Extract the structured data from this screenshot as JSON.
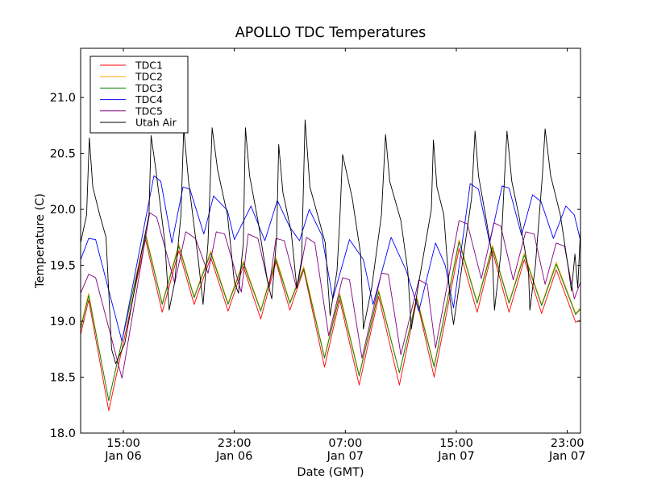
{
  "chart_data": {
    "type": "line",
    "title": "APOLLO TDC Temperatures",
    "xlabel": "Date (GMT)",
    "ylabel": "Temperature (C)",
    "x_units": "hours since 00:00 Jan 06 (GMT)",
    "xlim": [
      11.92,
      47.95
    ],
    "ylim": [
      18.0,
      21.44
    ],
    "grid": false,
    "legend_position": "top-left",
    "x_ticks": [
      {
        "value": 15,
        "label_time": "15:00",
        "label_date": "Jan 06"
      },
      {
        "value": 23,
        "label_time": "23:00",
        "label_date": "Jan 06"
      },
      {
        "value": 31,
        "label_time": "07:00",
        "label_date": "Jan 07"
      },
      {
        "value": 39,
        "label_time": "15:00",
        "label_date": "Jan 07"
      },
      {
        "value": 47,
        "label_time": "23:00",
        "label_date": "Jan 07"
      }
    ],
    "y_ticks": [
      {
        "value": 18.0,
        "label": "18.0"
      },
      {
        "value": 18.5,
        "label": "18.5"
      },
      {
        "value": 19.0,
        "label": "19.0"
      },
      {
        "value": 19.5,
        "label": "19.5"
      },
      {
        "value": 20.0,
        "label": "20.0"
      },
      {
        "value": 20.5,
        "label": "20.5"
      },
      {
        "value": 21.0,
        "label": "21.0"
      }
    ],
    "series": [
      {
        "name": "TDC1",
        "color": "#ff0000",
        "points": [
          [
            11.92,
            18.88
          ],
          [
            12.5,
            19.19
          ],
          [
            13.95,
            18.2
          ],
          [
            16.6,
            19.73
          ],
          [
            17.8,
            19.08
          ],
          [
            19.0,
            19.63
          ],
          [
            20.1,
            19.15
          ],
          [
            21.3,
            19.57
          ],
          [
            22.55,
            19.09
          ],
          [
            23.65,
            19.49
          ],
          [
            24.9,
            19.02
          ],
          [
            26.0,
            19.53
          ],
          [
            27.0,
            19.1
          ],
          [
            28.0,
            19.46
          ],
          [
            29.5,
            18.59
          ],
          [
            30.6,
            19.19
          ],
          [
            32.0,
            18.43
          ],
          [
            33.4,
            19.22
          ],
          [
            34.9,
            18.43
          ],
          [
            36.15,
            19.19
          ],
          [
            37.4,
            18.5
          ],
          [
            39.2,
            19.65
          ],
          [
            40.5,
            19.08
          ],
          [
            41.6,
            19.63
          ],
          [
            42.8,
            19.08
          ],
          [
            43.9,
            19.55
          ],
          [
            45.15,
            19.07
          ],
          [
            46.2,
            19.46
          ],
          [
            47.6,
            18.99
          ],
          [
            47.95,
            19.01
          ]
        ]
      },
      {
        "name": "TDC2",
        "color": "#ffa500",
        "points": [
          [
            11.92,
            18.95
          ],
          [
            12.5,
            19.25
          ],
          [
            13.95,
            18.29
          ],
          [
            16.6,
            19.79
          ],
          [
            17.8,
            19.16
          ],
          [
            19.0,
            19.69
          ],
          [
            20.1,
            19.22
          ],
          [
            21.3,
            19.63
          ],
          [
            22.55,
            19.16
          ],
          [
            23.65,
            19.54
          ],
          [
            24.9,
            19.1
          ],
          [
            26.0,
            19.57
          ],
          [
            27.0,
            19.17
          ],
          [
            28.0,
            19.49
          ],
          [
            29.5,
            18.68
          ],
          [
            30.6,
            19.25
          ],
          [
            32.0,
            18.52
          ],
          [
            33.4,
            19.28
          ],
          [
            34.9,
            18.54
          ],
          [
            36.15,
            19.22
          ],
          [
            37.4,
            18.6
          ],
          [
            39.2,
            19.73
          ],
          [
            40.5,
            19.17
          ],
          [
            41.6,
            19.68
          ],
          [
            42.8,
            19.17
          ],
          [
            43.9,
            19.61
          ],
          [
            45.15,
            19.15
          ],
          [
            46.2,
            19.53
          ],
          [
            47.6,
            19.07
          ],
          [
            47.95,
            19.12
          ]
        ]
      },
      {
        "name": "TDC3",
        "color": "#008000",
        "points": [
          [
            11.92,
            18.93
          ],
          [
            12.5,
            19.23
          ],
          [
            13.95,
            18.29
          ],
          [
            16.6,
            19.77
          ],
          [
            17.8,
            19.15
          ],
          [
            19.0,
            19.67
          ],
          [
            20.1,
            19.21
          ],
          [
            21.3,
            19.61
          ],
          [
            22.55,
            19.15
          ],
          [
            23.65,
            19.52
          ],
          [
            24.9,
            19.09
          ],
          [
            26.0,
            19.55
          ],
          [
            27.0,
            19.16
          ],
          [
            28.0,
            19.47
          ],
          [
            29.5,
            18.67
          ],
          [
            30.6,
            19.23
          ],
          [
            32.0,
            18.51
          ],
          [
            33.4,
            19.26
          ],
          [
            34.9,
            18.54
          ],
          [
            36.15,
            19.2
          ],
          [
            37.4,
            18.59
          ],
          [
            39.2,
            19.71
          ],
          [
            40.5,
            19.16
          ],
          [
            41.6,
            19.66
          ],
          [
            42.8,
            19.16
          ],
          [
            43.9,
            19.59
          ],
          [
            45.15,
            19.14
          ],
          [
            46.2,
            19.51
          ],
          [
            47.6,
            19.06
          ],
          [
            47.95,
            19.11
          ]
        ]
      },
      {
        "name": "TDC4",
        "color": "#0000ff",
        "points": [
          [
            11.92,
            19.55
          ],
          [
            12.5,
            19.74
          ],
          [
            13.0,
            19.73
          ],
          [
            14.9,
            18.82
          ],
          [
            17.2,
            20.3
          ],
          [
            17.7,
            20.25
          ],
          [
            18.5,
            19.7
          ],
          [
            19.3,
            20.2
          ],
          [
            19.8,
            20.18
          ],
          [
            20.8,
            19.78
          ],
          [
            21.5,
            20.12
          ],
          [
            22.5,
            19.99
          ],
          [
            23.0,
            19.73
          ],
          [
            24.2,
            20.03
          ],
          [
            25.2,
            19.72
          ],
          [
            26.1,
            20.08
          ],
          [
            27.0,
            19.84
          ],
          [
            27.7,
            19.72
          ],
          [
            28.4,
            20.0
          ],
          [
            29.3,
            19.77
          ],
          [
            30.1,
            19.2
          ],
          [
            31.3,
            19.73
          ],
          [
            32.3,
            19.55
          ],
          [
            33.0,
            19.15
          ],
          [
            34.3,
            19.75
          ],
          [
            35.4,
            19.45
          ],
          [
            36.3,
            19.09
          ],
          [
            37.5,
            19.7
          ],
          [
            38.2,
            19.5
          ],
          [
            38.8,
            19.12
          ],
          [
            40.0,
            20.23
          ],
          [
            40.6,
            20.18
          ],
          [
            41.4,
            19.7
          ],
          [
            42.3,
            20.21
          ],
          [
            42.8,
            20.19
          ],
          [
            43.7,
            19.77
          ],
          [
            44.5,
            20.13
          ],
          [
            45.1,
            20.07
          ],
          [
            46.0,
            19.74
          ],
          [
            46.9,
            20.03
          ],
          [
            47.5,
            19.95
          ],
          [
            47.95,
            19.72
          ]
        ]
      },
      {
        "name": "TDC5",
        "color": "#800080",
        "points": [
          [
            11.92,
            19.25
          ],
          [
            12.5,
            19.42
          ],
          [
            13.0,
            19.39
          ],
          [
            14.9,
            18.49
          ],
          [
            16.9,
            19.97
          ],
          [
            17.4,
            19.93
          ],
          [
            18.7,
            19.34
          ],
          [
            19.5,
            19.8
          ],
          [
            20.2,
            19.74
          ],
          [
            21.1,
            19.43
          ],
          [
            21.7,
            19.8
          ],
          [
            22.3,
            19.78
          ],
          [
            23.5,
            19.26
          ],
          [
            24.0,
            19.78
          ],
          [
            24.7,
            19.74
          ],
          [
            25.5,
            19.3
          ],
          [
            26.0,
            19.74
          ],
          [
            26.6,
            19.72
          ],
          [
            27.5,
            19.29
          ],
          [
            28.2,
            19.75
          ],
          [
            28.8,
            19.7
          ],
          [
            29.8,
            18.87
          ],
          [
            30.8,
            19.39
          ],
          [
            31.3,
            19.37
          ],
          [
            32.2,
            18.67
          ],
          [
            33.6,
            19.43
          ],
          [
            34.1,
            19.42
          ],
          [
            35.0,
            18.7
          ],
          [
            36.3,
            19.37
          ],
          [
            36.9,
            19.33
          ],
          [
            37.5,
            18.76
          ],
          [
            39.2,
            19.9
          ],
          [
            39.8,
            19.87
          ],
          [
            40.8,
            19.38
          ],
          [
            41.7,
            19.88
          ],
          [
            42.2,
            19.85
          ],
          [
            43.1,
            19.37
          ],
          [
            44.0,
            19.8
          ],
          [
            44.6,
            19.78
          ],
          [
            45.4,
            19.33
          ],
          [
            46.2,
            19.7
          ],
          [
            46.8,
            19.67
          ],
          [
            47.5,
            19.2
          ],
          [
            47.95,
            19.35
          ]
        ]
      },
      {
        "name": "Utah Air",
        "color": "#000000",
        "points": [
          [
            11.92,
            19.7
          ],
          [
            12.35,
            19.95
          ],
          [
            12.55,
            20.64
          ],
          [
            12.8,
            20.2
          ],
          [
            13.3,
            19.95
          ],
          [
            13.75,
            19.75
          ],
          [
            14.15,
            18.75
          ],
          [
            14.45,
            18.62
          ],
          [
            15.1,
            18.8
          ],
          [
            16.2,
            19.55
          ],
          [
            16.85,
            19.95
          ],
          [
            17.0,
            20.66
          ],
          [
            17.35,
            20.35
          ],
          [
            18.0,
            19.7
          ],
          [
            18.3,
            19.1
          ],
          [
            18.7,
            19.35
          ],
          [
            19.15,
            19.95
          ],
          [
            19.35,
            20.72
          ],
          [
            19.7,
            20.25
          ],
          [
            20.4,
            19.55
          ],
          [
            20.75,
            19.15
          ],
          [
            21.1,
            19.7
          ],
          [
            21.4,
            20.73
          ],
          [
            21.8,
            20.35
          ],
          [
            22.5,
            19.95
          ],
          [
            23.0,
            19.35
          ],
          [
            23.3,
            19.25
          ],
          [
            23.65,
            19.7
          ],
          [
            23.8,
            20.73
          ],
          [
            24.1,
            20.3
          ],
          [
            24.7,
            19.9
          ],
          [
            25.4,
            19.35
          ],
          [
            25.7,
            19.2
          ],
          [
            26.05,
            19.75
          ],
          [
            26.2,
            20.58
          ],
          [
            26.5,
            20.15
          ],
          [
            27.1,
            19.8
          ],
          [
            27.5,
            19.3
          ],
          [
            27.85,
            19.55
          ],
          [
            28.1,
            20.8
          ],
          [
            28.45,
            20.2
          ],
          [
            29.0,
            19.95
          ],
          [
            29.55,
            19.7
          ],
          [
            29.9,
            19.05
          ],
          [
            30.4,
            19.45
          ],
          [
            30.6,
            19.9
          ],
          [
            30.8,
            20.49
          ],
          [
            31.0,
            20.38
          ],
          [
            31.5,
            20.1
          ],
          [
            32.1,
            19.6
          ],
          [
            32.3,
            18.93
          ],
          [
            32.9,
            19.3
          ],
          [
            33.6,
            19.95
          ],
          [
            33.9,
            20.67
          ],
          [
            34.2,
            20.25
          ],
          [
            35.0,
            19.9
          ],
          [
            35.5,
            19.45
          ],
          [
            35.75,
            18.93
          ],
          [
            36.3,
            19.35
          ],
          [
            37.2,
            20.0
          ],
          [
            37.35,
            20.62
          ],
          [
            37.6,
            20.2
          ],
          [
            38.1,
            19.95
          ],
          [
            38.55,
            19.2
          ],
          [
            38.8,
            18.97
          ],
          [
            39.3,
            19.4
          ],
          [
            40.1,
            20.1
          ],
          [
            40.35,
            20.7
          ],
          [
            40.6,
            20.3
          ],
          [
            41.1,
            19.95
          ],
          [
            41.6,
            19.58
          ],
          [
            41.75,
            19.1
          ],
          [
            42.2,
            19.6
          ],
          [
            42.5,
            20.35
          ],
          [
            42.65,
            20.7
          ],
          [
            43.0,
            20.25
          ],
          [
            43.5,
            19.95
          ],
          [
            44.2,
            19.45
          ],
          [
            44.3,
            19.1
          ],
          [
            44.7,
            19.5
          ],
          [
            45.2,
            20.3
          ],
          [
            45.4,
            20.72
          ],
          [
            45.8,
            20.3
          ],
          [
            46.5,
            19.95
          ],
          [
            47.1,
            19.45
          ],
          [
            47.3,
            19.27
          ],
          [
            47.55,
            19.6
          ],
          [
            47.75,
            19.3
          ],
          [
            47.95,
            19.82
          ]
        ]
      }
    ]
  }
}
